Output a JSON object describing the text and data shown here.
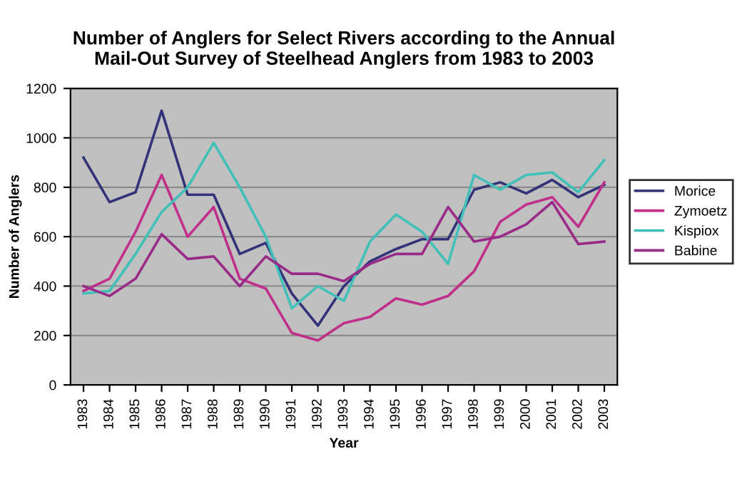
{
  "chart_data": {
    "type": "line",
    "title": "Number of Anglers for Select Rivers according to the Annual\nMail-Out Survey of Steelhead Anglers from 1983 to 2003",
    "xlabel": "Year",
    "ylabel": "Number of Anglers",
    "categories": [
      "1983",
      "1984",
      "1985",
      "1986",
      "1987",
      "1988",
      "1989",
      "1990",
      "1991",
      "1992",
      "1993",
      "1994",
      "1995",
      "1996",
      "1997",
      "1998",
      "1999",
      "2000",
      "2001",
      "2002",
      "2003"
    ],
    "series": [
      {
        "name": "Morice",
        "color": "#33337a",
        "values": [
          920,
          740,
          780,
          1110,
          770,
          770,
          530,
          575,
          370,
          240,
          400,
          500,
          550,
          590,
          590,
          790,
          820,
          775,
          830,
          760,
          810
        ]
      },
      {
        "name": "Zymoetz",
        "color": "#c0308a",
        "values": [
          380,
          430,
          620,
          850,
          600,
          720,
          430,
          390,
          210,
          180,
          250,
          275,
          350,
          325,
          360,
          460,
          660,
          730,
          760,
          640,
          820
        ]
      },
      {
        "name": "Kispiox",
        "color": "#40c0b8",
        "values": [
          370,
          380,
          530,
          700,
          800,
          980,
          800,
          600,
          310,
          400,
          340,
          580,
          690,
          620,
          490,
          850,
          790,
          850,
          860,
          780,
          910
        ]
      },
      {
        "name": "Babine",
        "color": "#9a2a88",
        "values": [
          400,
          360,
          430,
          610,
          510,
          520,
          400,
          520,
          450,
          450,
          420,
          490,
          530,
          530,
          720,
          580,
          600,
          650,
          740,
          570,
          580
        ]
      }
    ],
    "ylim": [
      0,
      1200
    ],
    "yticks": [
      0,
      200,
      400,
      600,
      800,
      1000,
      1200
    ],
    "grid": "y",
    "legend": "right"
  }
}
